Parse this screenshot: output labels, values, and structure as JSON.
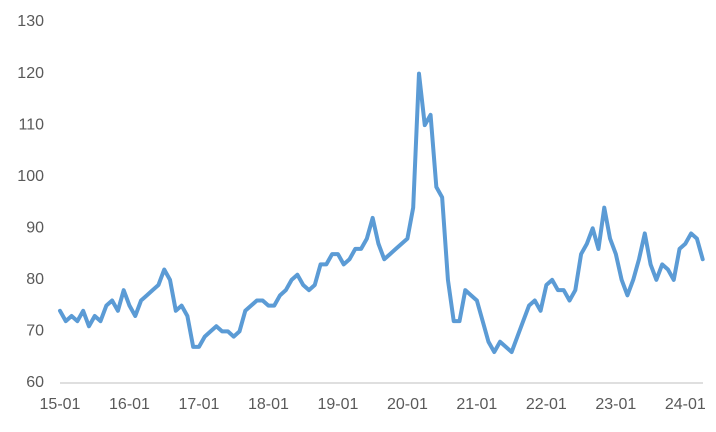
{
  "chart_data": {
    "type": "line",
    "x": [
      "15-01",
      "15-02",
      "15-03",
      "15-04",
      "15-05",
      "15-06",
      "15-07",
      "15-08",
      "15-09",
      "15-10",
      "15-11",
      "15-12",
      "16-01",
      "16-02",
      "16-03",
      "16-04",
      "16-05",
      "16-06",
      "16-07",
      "16-08",
      "16-09",
      "16-10",
      "16-11",
      "16-12",
      "17-01",
      "17-02",
      "17-03",
      "17-04",
      "17-05",
      "17-06",
      "17-07",
      "17-08",
      "17-09",
      "17-10",
      "17-11",
      "17-12",
      "18-01",
      "18-02",
      "18-03",
      "18-04",
      "18-05",
      "18-06",
      "18-07",
      "18-08",
      "18-09",
      "18-10",
      "18-11",
      "18-12",
      "19-01",
      "19-02",
      "19-03",
      "19-04",
      "19-05",
      "19-06",
      "19-07",
      "19-08",
      "19-09",
      "19-10",
      "19-11",
      "19-12",
      "20-01",
      "20-02",
      "20-03",
      "20-04",
      "20-05",
      "20-06",
      "20-07",
      "20-08",
      "20-09",
      "20-10",
      "20-11",
      "20-12",
      "21-01",
      "21-02",
      "21-03",
      "21-04",
      "21-05",
      "21-06",
      "21-07",
      "21-08",
      "21-09",
      "21-10",
      "21-11",
      "21-12",
      "22-01",
      "22-02",
      "22-03",
      "22-04",
      "22-05",
      "22-06",
      "22-07",
      "22-08",
      "22-09",
      "22-10",
      "22-11",
      "22-12",
      "23-01",
      "23-02",
      "23-03",
      "23-04",
      "23-05",
      "23-06",
      "23-07",
      "23-08",
      "23-09",
      "23-10",
      "23-11",
      "23-12",
      "24-01",
      "24-02",
      "24-03",
      "24-04"
    ],
    "values": [
      74,
      72,
      73,
      72,
      74,
      71,
      73,
      72,
      75,
      76,
      74,
      78,
      75,
      73,
      76,
      77,
      78,
      79,
      82,
      80,
      74,
      75,
      73,
      67,
      67,
      69,
      70,
      71,
      70,
      70,
      69,
      70,
      74,
      75,
      76,
      76,
      75,
      75,
      77,
      78,
      80,
      81,
      79,
      78,
      79,
      83,
      83,
      85,
      85,
      83,
      84,
      86,
      86,
      88,
      92,
      87,
      84,
      85,
      86,
      87,
      88,
      94,
      120,
      110,
      112,
      98,
      96,
      80,
      72,
      72,
      78,
      77,
      76,
      72,
      68,
      66,
      68,
      67,
      66,
      69,
      72,
      75,
      76,
      74,
      79,
      80,
      78,
      78,
      76,
      78,
      85,
      87,
      90,
      86,
      94,
      88,
      85,
      80,
      77,
      80,
      84,
      89,
      83,
      80,
      83,
      82,
      80,
      86,
      87,
      89,
      88,
      84
    ],
    "color": "#5b9bd5",
    "ylim": [
      60,
      130
    ],
    "yticks": [
      60,
      70,
      80,
      90,
      100,
      110,
      120,
      130
    ],
    "xticks": [
      "15-01",
      "16-01",
      "17-01",
      "18-01",
      "19-01",
      "20-01",
      "21-01",
      "22-01",
      "23-01",
      "24-01"
    ]
  }
}
